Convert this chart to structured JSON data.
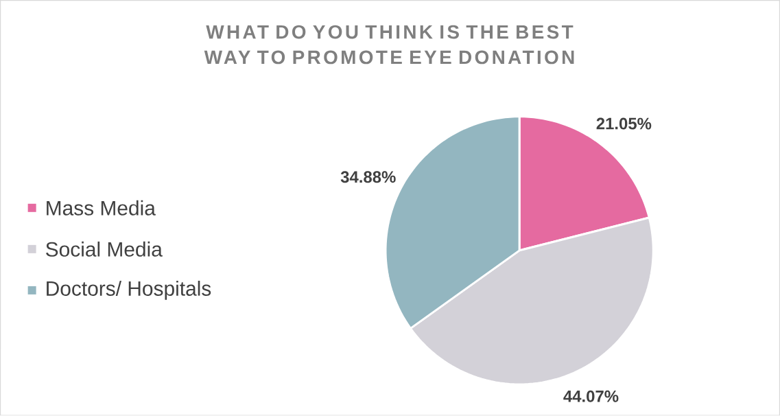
{
  "chart_data": {
    "type": "pie",
    "title": "WHAT DO YOU THINK IS THE BEST WAY TO PROMOTE EYE DONATION",
    "categories": [
      "Mass Media",
      "Social Media",
      "Doctors/ Hospitals"
    ],
    "values": [
      21.05,
      44.07,
      34.88
    ],
    "colors": [
      "#e56aa0",
      "#d3d1d8",
      "#93b6c0"
    ],
    "value_labels": [
      "21.05%",
      "44.07%",
      "34.88%"
    ],
    "legend": "left"
  }
}
